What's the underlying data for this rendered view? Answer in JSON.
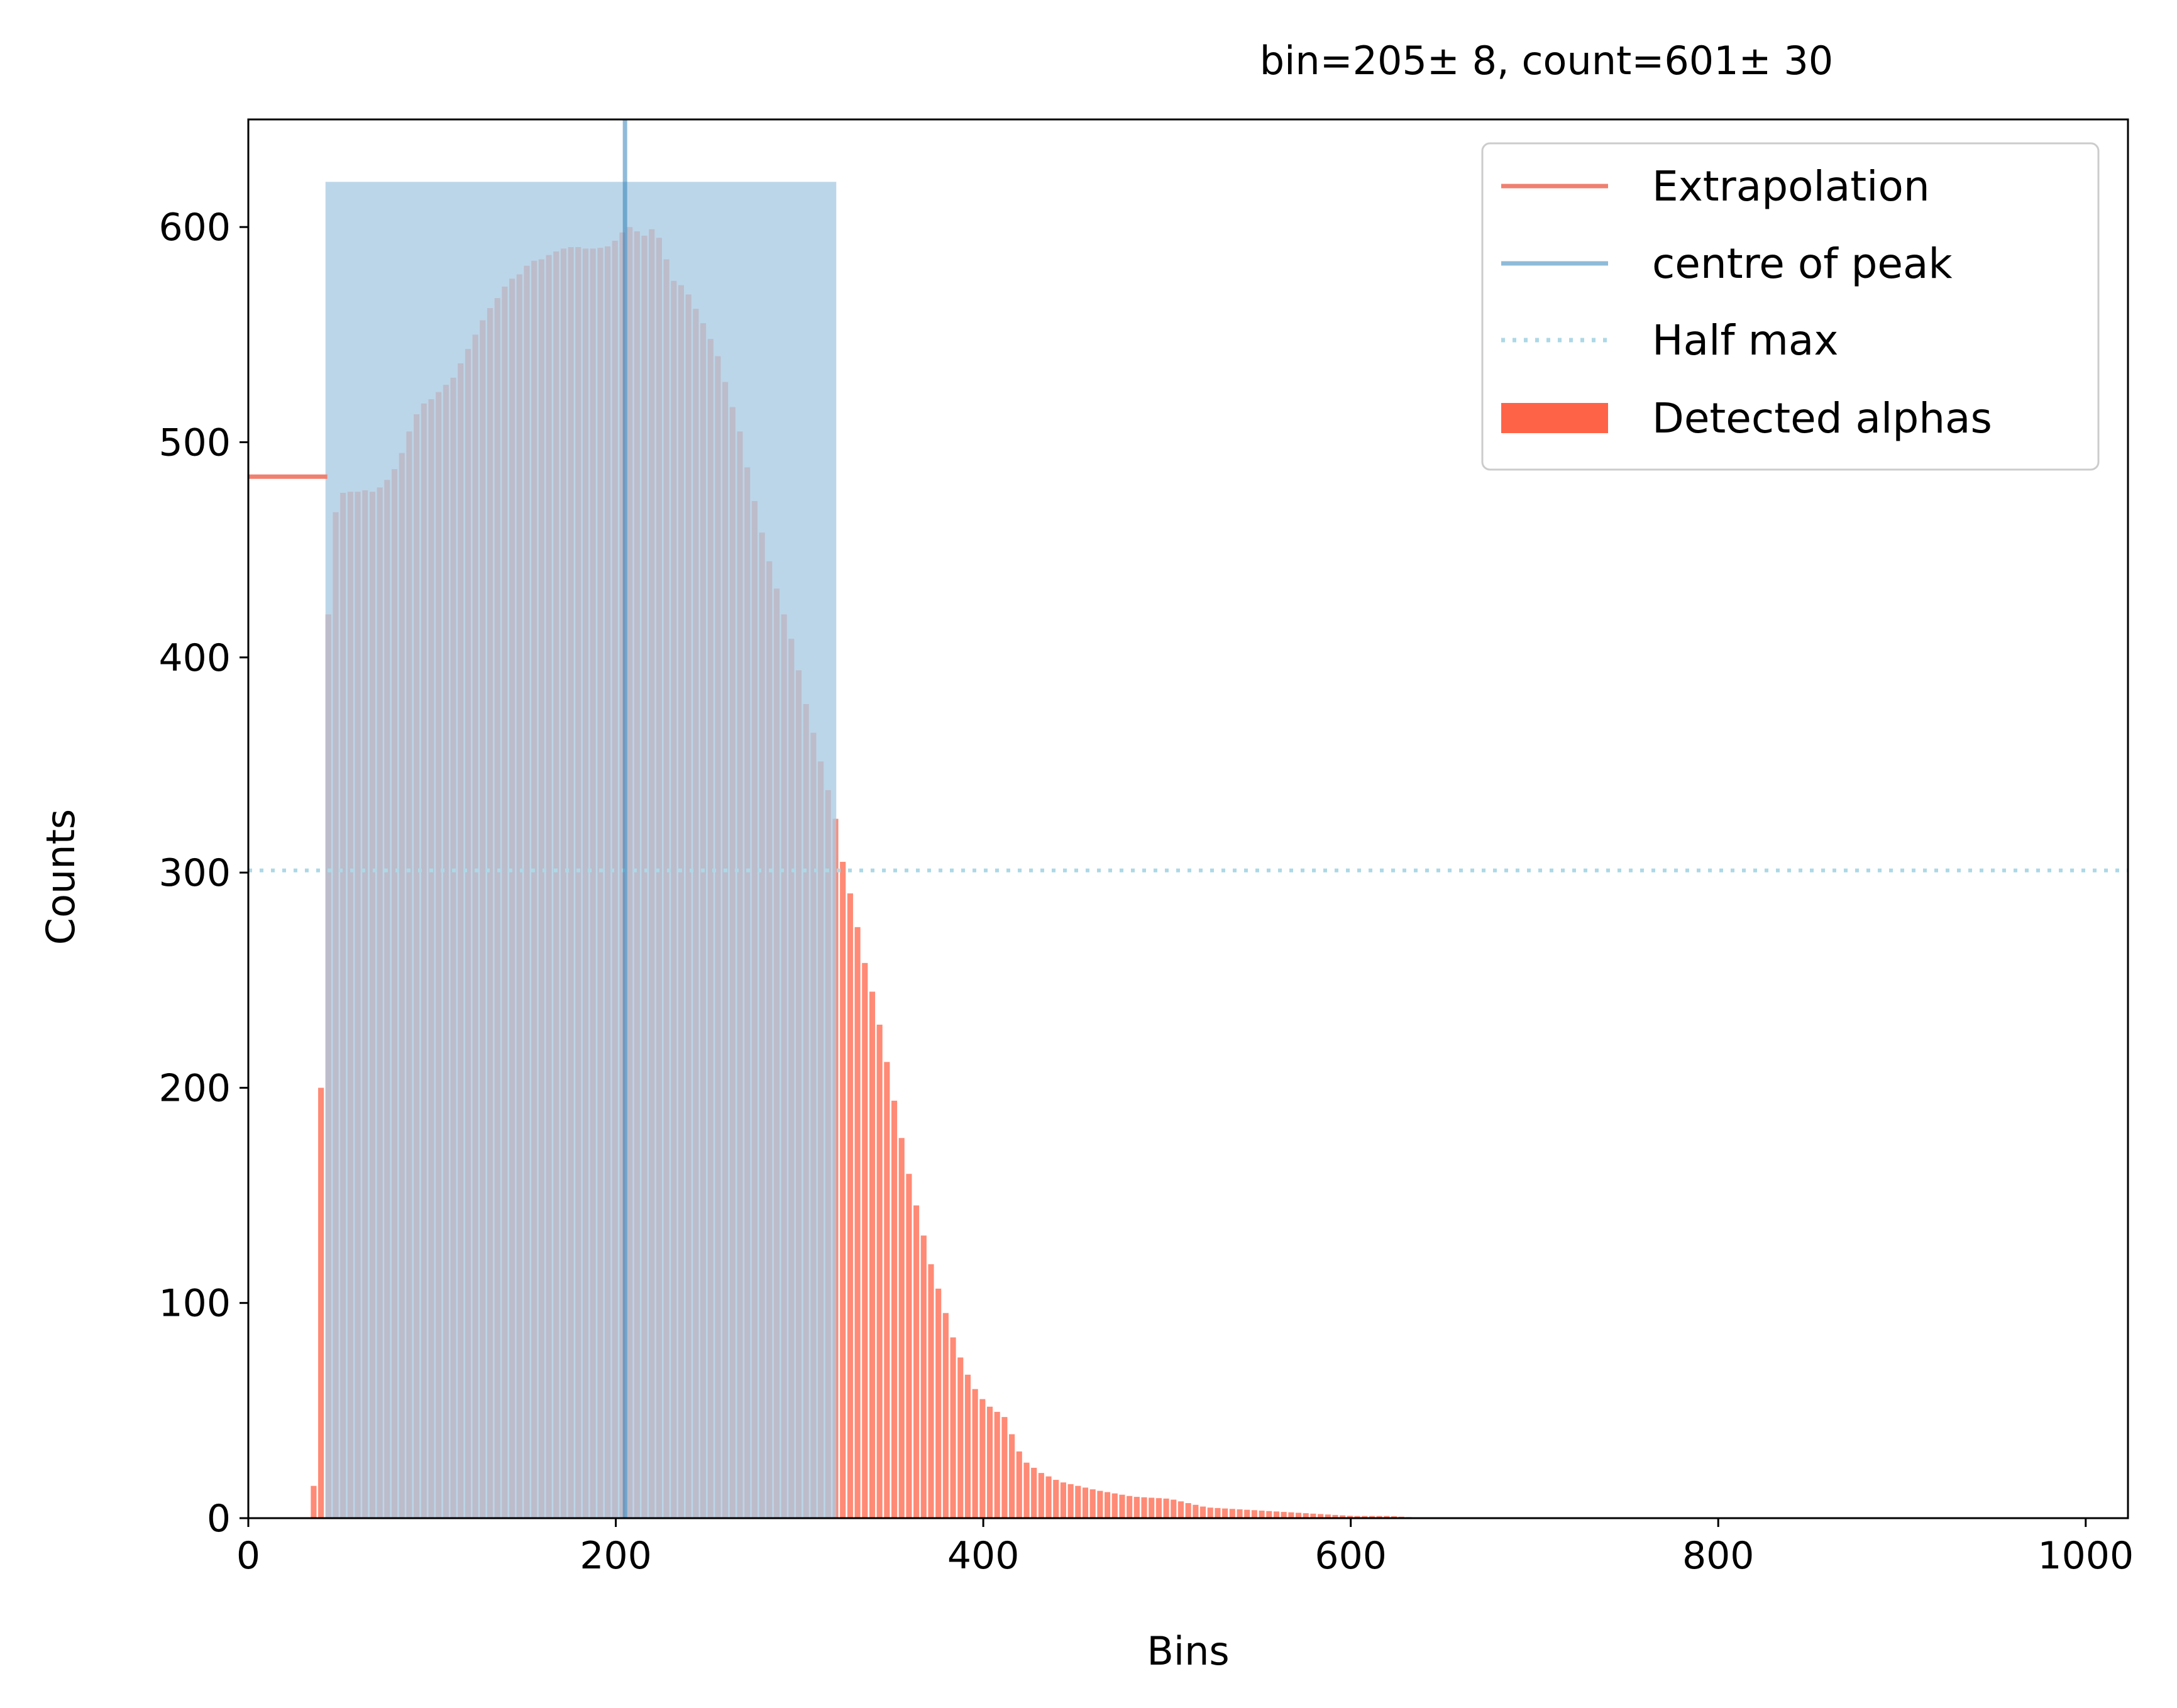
{
  "chart_data": {
    "type": "bar",
    "title": "bin=205± 8, count=601± 30",
    "xlabel": "Bins",
    "ylabel": "Counts",
    "xlim": [
      0,
      1023
    ],
    "ylim": [
      0,
      650
    ],
    "xticks": [
      0,
      200,
      400,
      600,
      800,
      1000
    ],
    "yticks": [
      0,
      100,
      200,
      300,
      400,
      500,
      600
    ],
    "grid": false,
    "legend_position": "top-right",
    "colors": {
      "detected": "#ff6347",
      "extrapolation": "#f08070",
      "centre": "#1f77b4",
      "halfmax": "#add8e6",
      "peak_region": "#a9cae3"
    },
    "legend": [
      {
        "key": "extrapolation",
        "label": "Extrapolation",
        "style": "line"
      },
      {
        "key": "centre",
        "label": "centre of peak",
        "style": "line"
      },
      {
        "key": "halfmax",
        "label": "Half max",
        "style": "dotted"
      },
      {
        "key": "detected",
        "label": "Detected alphas",
        "style": "patch"
      }
    ],
    "series": [
      {
        "name": "Detected alphas",
        "kind": "histogram",
        "x": [
          30,
          34,
          36,
          38,
          40,
          42,
          44,
          48,
          52,
          56,
          60,
          66,
          72,
          80,
          86,
          92,
          98,
          104,
          110,
          116,
          122,
          128,
          134,
          140,
          146,
          152,
          158,
          164,
          170,
          176,
          182,
          188,
          194,
          200,
          204,
          206,
          210,
          214,
          218,
          222,
          226,
          230,
          236,
          242,
          248,
          254,
          260,
          266,
          272,
          278,
          284,
          290,
          296,
          300,
          306,
          312,
          318,
          322,
          328,
          334,
          340,
          346,
          352,
          358,
          364,
          370,
          376,
          382,
          388,
          394,
          400,
          410,
          420,
          430,
          440,
          460,
          480,
          500,
          520,
          540,
          560,
          580,
          600,
          620,
          640,
          660,
          680,
          700
        ],
        "values": [
          0,
          15,
          70,
          200,
          330,
          420,
          460,
          475,
          478,
          476,
          478,
          477,
          480,
          490,
          505,
          517,
          520,
          525,
          530,
          540,
          550,
          560,
          567,
          575,
          578,
          584,
          585,
          588,
          590,
          591,
          590,
          590,
          591,
          595,
          600,
          600,
          598,
          596,
          599,
          595,
          585,
          575,
          572,
          562,
          552,
          540,
          522,
          505,
          480,
          458,
          438,
          420,
          403,
          385,
          365,
          345,
          325,
          305,
          283,
          258,
          238,
          212,
          185,
          160,
          138,
          118,
          101,
          84,
          70,
          60,
          53,
          47,
          27,
          21,
          17,
          13,
          10,
          9,
          5,
          4,
          3,
          2,
          1,
          1,
          0,
          0,
          0,
          0
        ]
      },
      {
        "name": "Extrapolation",
        "kind": "line",
        "x": [
          0,
          43
        ],
        "y": [
          484,
          484
        ]
      },
      {
        "name": "centre of peak",
        "kind": "vline",
        "x": 205
      },
      {
        "name": "Half max",
        "kind": "hline",
        "y": 301
      },
      {
        "kind": "band",
        "x": [
          42,
          320
        ],
        "y_top": 621
      }
    ]
  }
}
